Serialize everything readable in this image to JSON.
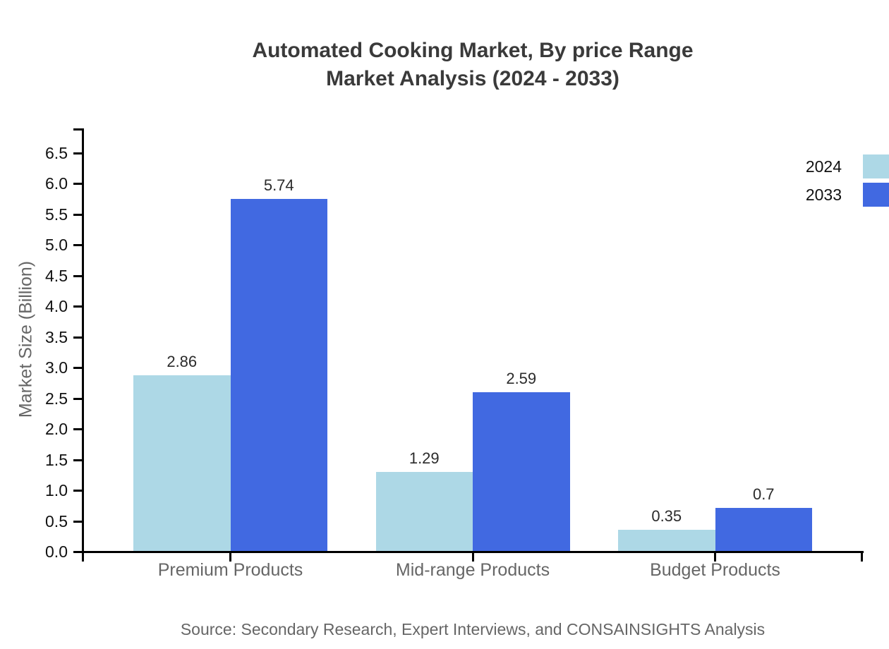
{
  "figure": {
    "title_line1": "Automated Cooking Market, By price Range",
    "title_line2": "Market Analysis (2024 - 2033)",
    "source": "Source: Secondary Research, Expert Interviews, and CONSAINSIGHTS Analysis"
  },
  "chart_data": {
    "type": "bar",
    "title": "Automated Cooking Market, By price Range Market Analysis (2024 - 2033)",
    "categories": [
      "Premium Products",
      "Mid-range Products",
      "Budget Products"
    ],
    "series": [
      {
        "name": "2024",
        "color": "#ADD8E6",
        "values": [
          2.86,
          1.29,
          0.35
        ],
        "labels": [
          "2.86",
          "1.29",
          "0.35"
        ]
      },
      {
        "name": "2033",
        "color": "#4169E1",
        "values": [
          5.74,
          2.59,
          0.7
        ],
        "labels": [
          "5.74",
          "2.59",
          "0.7"
        ]
      }
    ],
    "xlabel": "",
    "ylabel": "Market Size (Billion)",
    "ylim": [
      0.0,
      6.5
    ],
    "ytick_step": 0.5,
    "grid": false,
    "legend_position": "upper-right",
    "colors": {
      "axis": "#000000",
      "tick_label": "#111111",
      "category_label": "#666666",
      "value_label": "#2b2b2b",
      "title": "#3a3a3a",
      "source": "#666666",
      "background": "#ffffff"
    }
  }
}
